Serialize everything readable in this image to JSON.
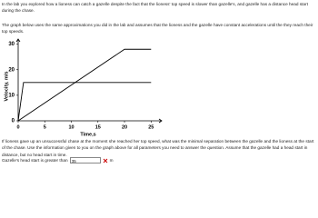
{
  "intro": [
    "In the lab you explored how a lioness can catch a gazelle despite the fact that the lioness' top speed is slower than gazelle's, and gazelle has a distance head start during the chase.",
    "The graph below uses the same approximations you did in the lab and assumes that the lioness and the gazelle have constant accelerations until the they reach their top speeds."
  ],
  "chart": {
    "type": "line",
    "y_label": "Velocity, m/s",
    "x_label": "Time,s",
    "xlim": [
      0,
      27
    ],
    "ylim": [
      0,
      32
    ],
    "xticks": [
      0,
      5,
      10,
      15,
      20,
      25
    ],
    "yticks": [
      0,
      10,
      20,
      30
    ],
    "series": [
      {
        "x": [
          0,
          1,
          25
        ],
        "values": [
          0,
          15,
          15
        ],
        "color": "#000000"
      },
      {
        "x": [
          0,
          20,
          25
        ],
        "values": [
          0,
          28,
          28
        ],
        "color": "#000000"
      }
    ]
  },
  "question": "If lioness gave up an unsuccessful chase at the moment she reached her top speed, what was the minimal separation between the gazelle and the lioness at the start of the chase. Use the information given to you on the graph above for all parameters you need to answer the question. Assume that the gazelle had a head start in distance, but no head start in time.",
  "answer": {
    "prompt": "Gazelle's head start is greater than",
    "value": "35",
    "unit": "m"
  }
}
